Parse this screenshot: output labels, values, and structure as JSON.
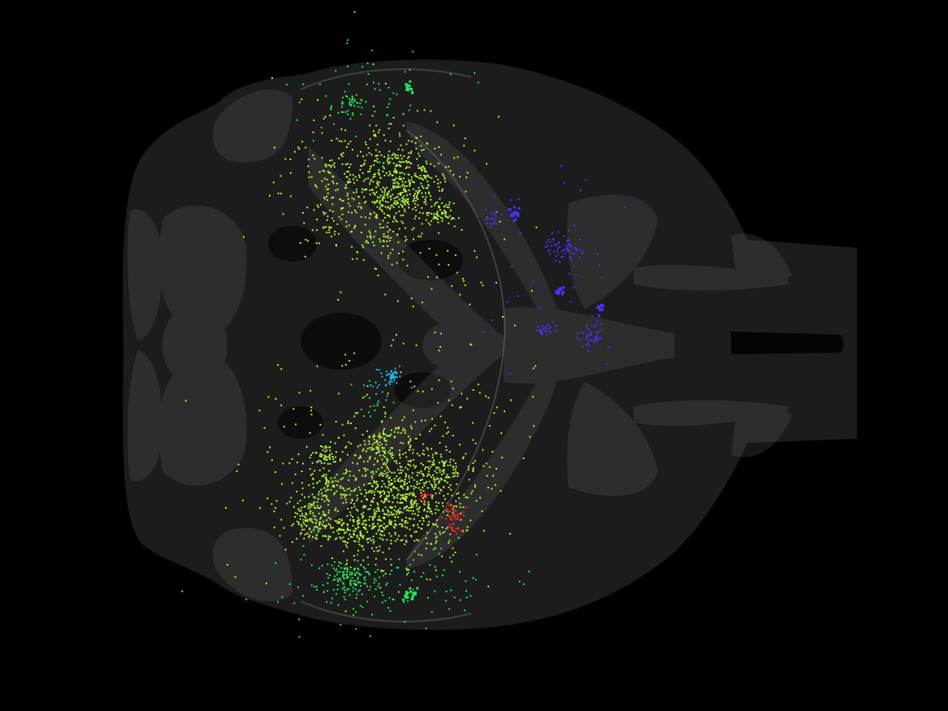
{
  "scene": {
    "background": "#000000",
    "brain_fill": "#1c1c1c",
    "overlay_fill": "#6a6a6a",
    "dark_region_fill": "#0a0a0a",
    "outline_stroke": "#888888"
  },
  "cell_clusters": [
    {
      "name": "yellow-green-cells",
      "color": "#b4f03c"
    },
    {
      "name": "green-cells",
      "color": "#28e05a"
    },
    {
      "name": "blue-cells",
      "color": "#4a30ff"
    },
    {
      "name": "cyan-cells",
      "color": "#20b8e0"
    },
    {
      "name": "red-cells",
      "color": "#ff2828"
    }
  ]
}
